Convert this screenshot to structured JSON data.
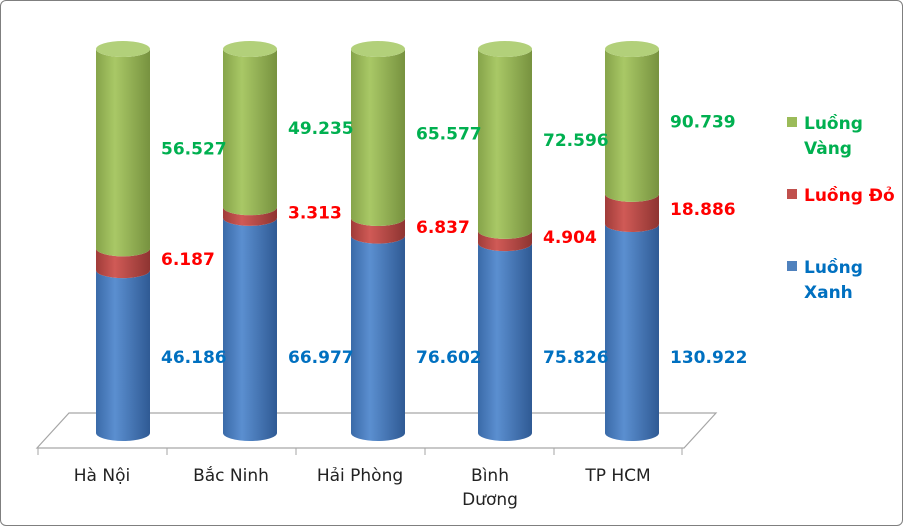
{
  "chart_data": {
    "type": "bar",
    "stacked": "100%",
    "style": "3d-cylinder",
    "categories": [
      "Hà Nội",
      "Bắc Ninh",
      "Hải Phòng",
      "Bình Dương",
      "TP HCM"
    ],
    "series": [
      {
        "name": "Luồng Xanh",
        "color": "#4f81bd",
        "label_color": "#0070c0",
        "values": [
          46.186,
          66.977,
          76.602,
          75.826,
          130.922
        ],
        "labels": [
          "46.186",
          "66.977",
          "76.602",
          "75.826",
          "130.922"
        ]
      },
      {
        "name": "Luồng Đỏ",
        "color": "#c0504d",
        "label_color": "#ff0000",
        "values": [
          6.187,
          3.313,
          6.837,
          4.904,
          18.886
        ],
        "labels": [
          "6.187",
          "3.313",
          "6.837",
          "4.904",
          "18.886"
        ]
      },
      {
        "name": "Luồng Vàng",
        "color": "#9bbb59",
        "label_color": "#00b050",
        "values": [
          56.527,
          49.235,
          65.577,
          72.596,
          90.739
        ],
        "labels": [
          "56.527",
          "49.235",
          "65.577",
          "72.596",
          "90.739"
        ]
      }
    ],
    "legend": {
      "position": "right",
      "items": [
        [
          "Luồng",
          "Vàng"
        ],
        [
          "Luồng Đỏ"
        ],
        [
          "Luồng",
          "Xanh"
        ]
      ]
    },
    "category_label_lines": [
      [
        "Hà Nội"
      ],
      [
        "Bắc Ninh"
      ],
      [
        "Hải Phòng"
      ],
      [
        "Bình",
        "Dương"
      ],
      [
        "TP HCM"
      ]
    ],
    "title": "",
    "xlabel": "",
    "ylabel": "",
    "grid": false
  }
}
